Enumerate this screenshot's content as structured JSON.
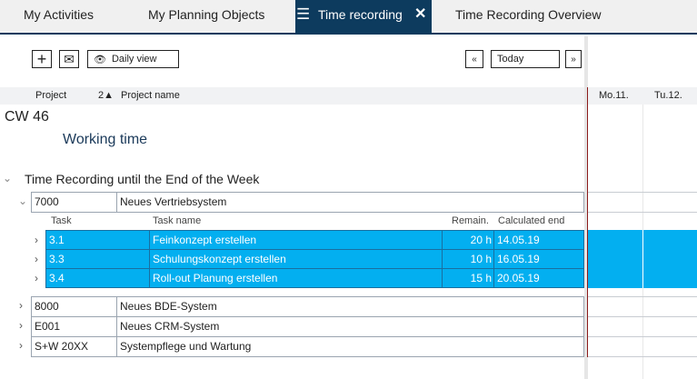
{
  "tabs": [
    {
      "label": "My Activities"
    },
    {
      "label": "My Planning Objects"
    },
    {
      "label": "Time recording",
      "active": true
    },
    {
      "label": "Time Recording Overview"
    }
  ],
  "toolbar": {
    "add_icon": "plus-icon",
    "mail_icon": "envelope-icon",
    "view_label": "Daily view",
    "prev_label": "«",
    "today_label": "Today",
    "next_label": "»"
  },
  "table_header": {
    "project": "Project",
    "sort_indicator": "2▲",
    "project_name": "Project name"
  },
  "calendar": {
    "days": [
      "Mo.11.",
      "Tu.12."
    ]
  },
  "week_label": "CW 46",
  "working_time_label": "Working time",
  "section_title": "Time Recording until the End of the Week",
  "expanded_project": {
    "id": "7000",
    "name": "Neues Vertriebsystem"
  },
  "task_header": {
    "task": "Task",
    "task_name": "Task name",
    "remain": "Remain.",
    "calculated_end": "Calculated end"
  },
  "tasks": [
    {
      "task": "3.1",
      "name": "Feinkonzept erstellen",
      "remain": "20 h",
      "end": "14.05.19"
    },
    {
      "task": "3.3",
      "name": "Schulungskonzept erstellen",
      "remain": "10 h",
      "end": "16.05.19"
    },
    {
      "task": "3.4",
      "name": "Roll-out Planung erstellen",
      "remain": "15 h",
      "end": "20.05.19"
    }
  ],
  "projects": [
    {
      "id": "8000",
      "name": "Neues BDE-System"
    },
    {
      "id": "E001",
      "name": "Neues CRM-System"
    },
    {
      "id": "S+W 20XX",
      "name": "Systempflege und Wartung"
    }
  ],
  "colors": {
    "active_tab": "#0d3b5e",
    "selected_row": "#03aff0",
    "today_line": "#8b1a1a"
  }
}
